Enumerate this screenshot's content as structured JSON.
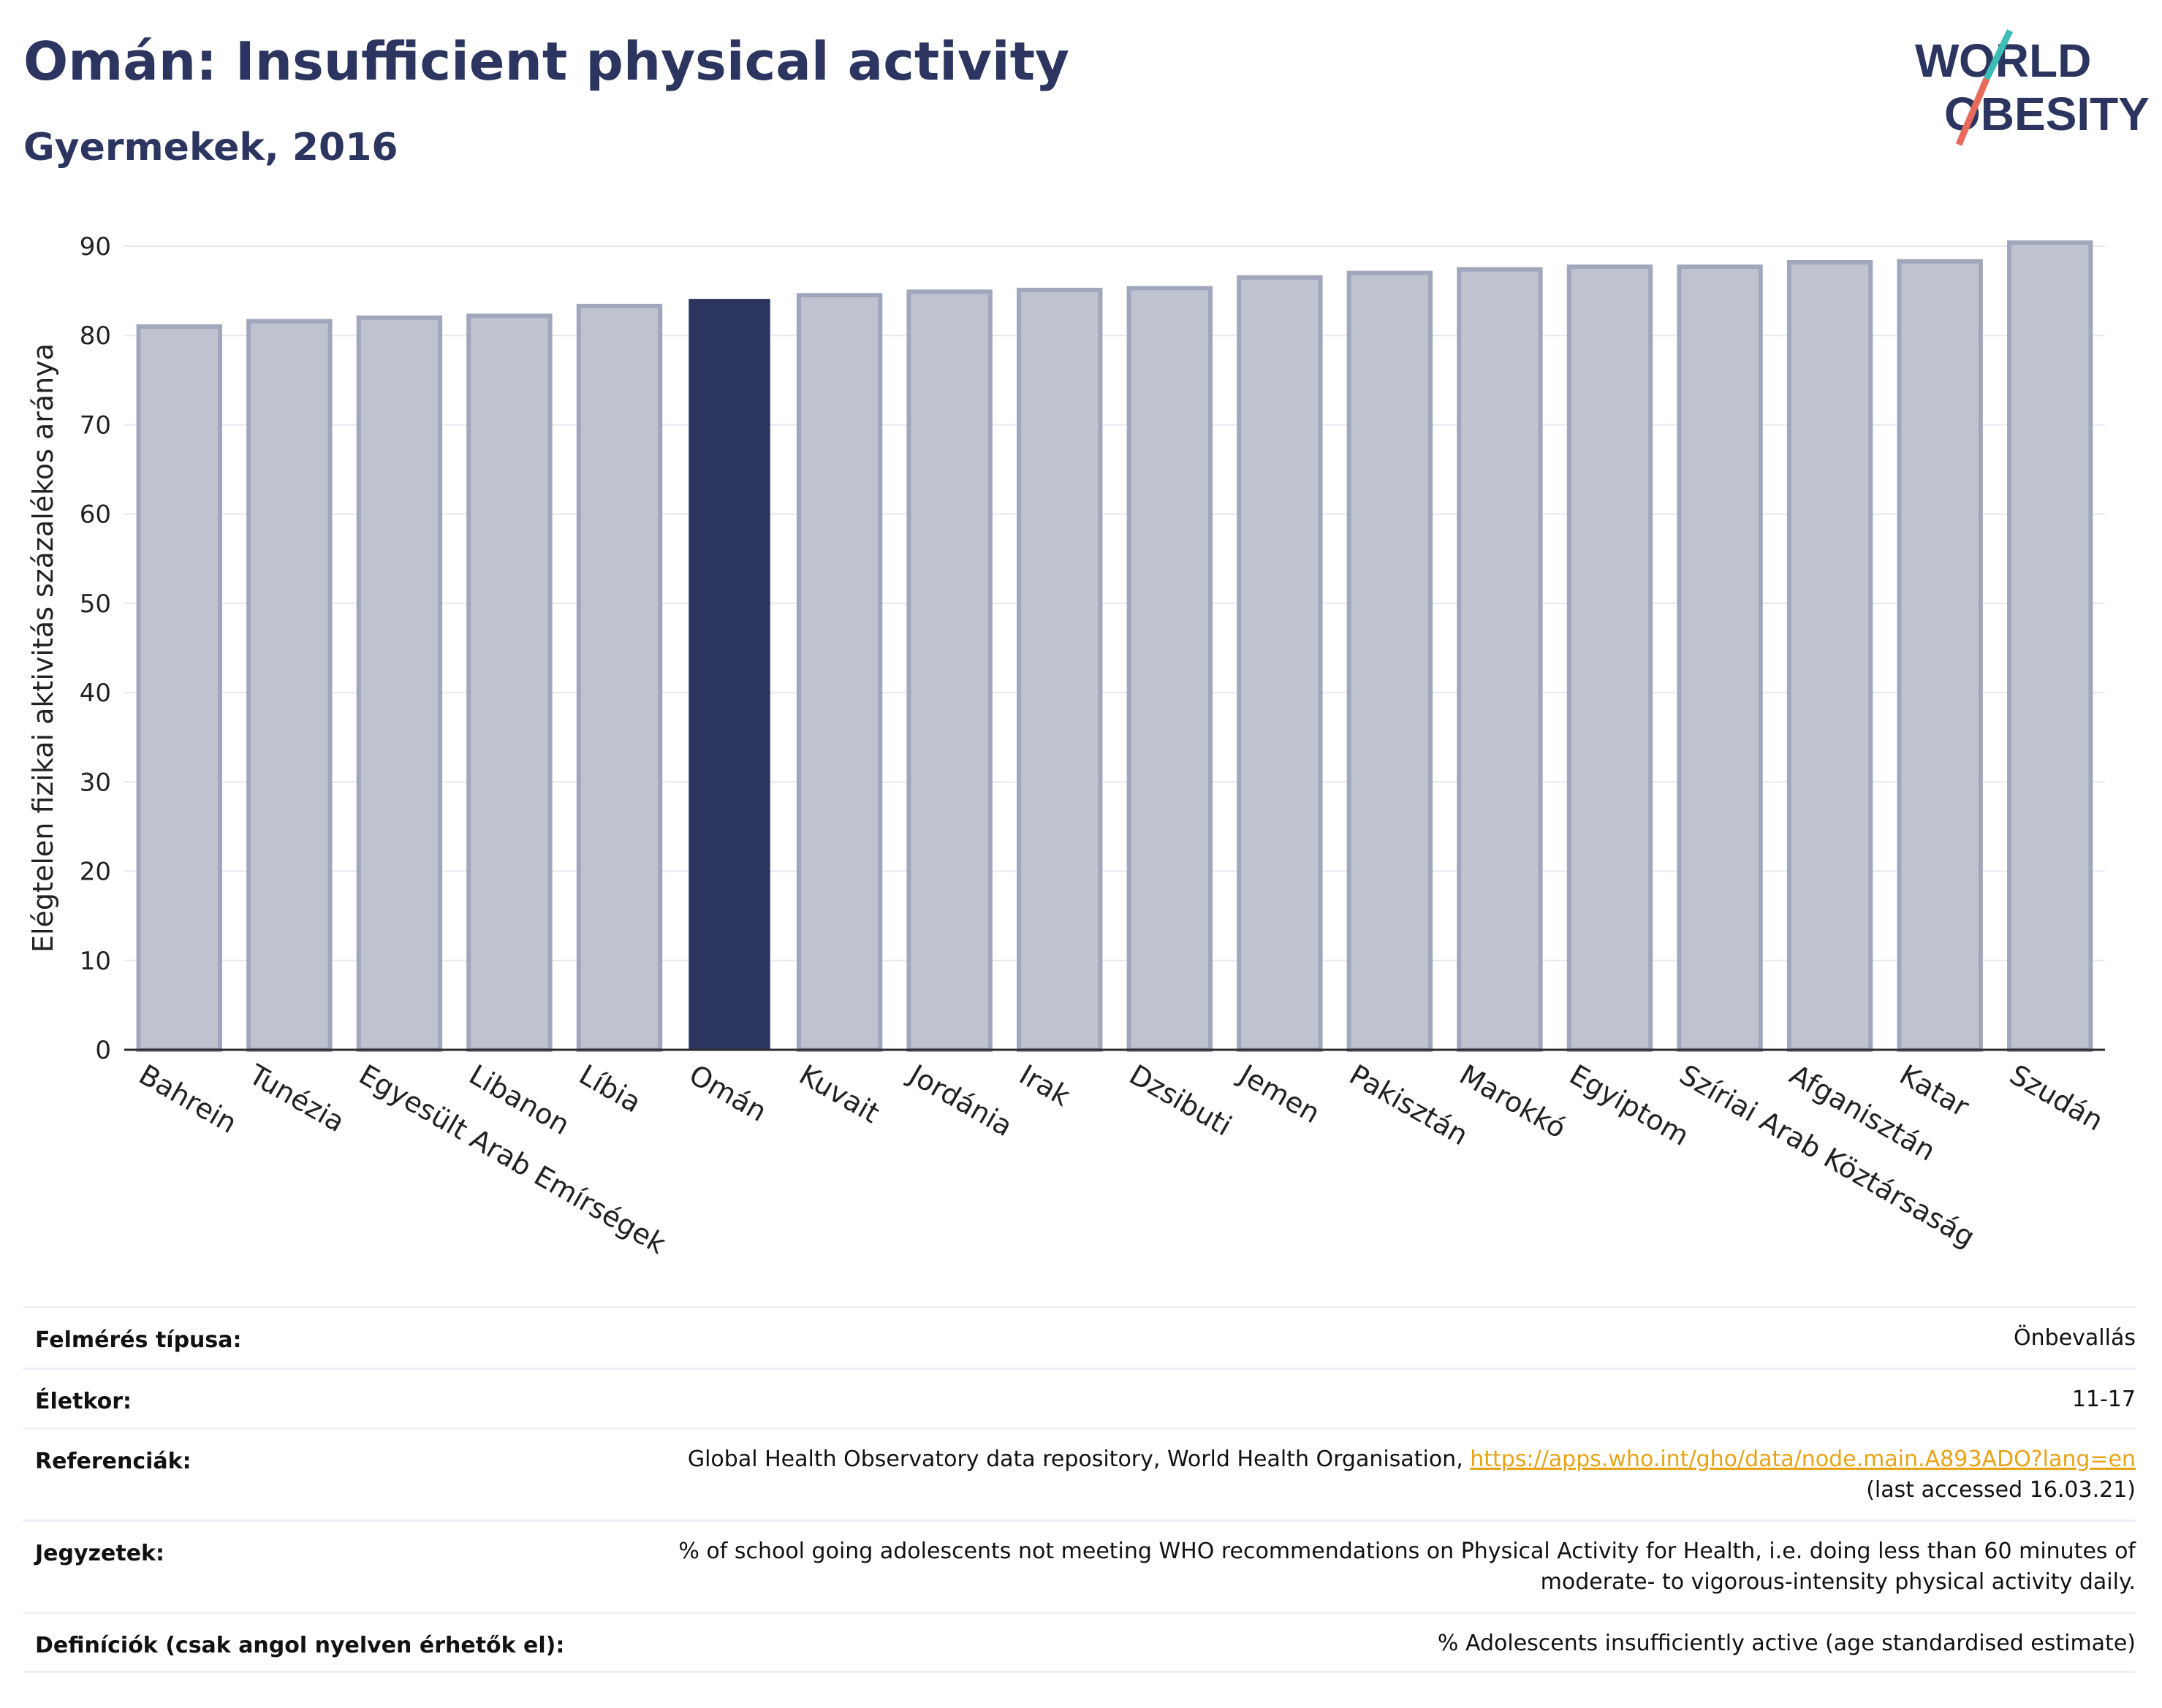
{
  "header": {
    "title": "Omán: Insufficient physical activity",
    "subtitle": "Gyermekek, 2016"
  },
  "logo": {
    "line1": "WORLD",
    "line2": "OBESITY"
  },
  "colors": {
    "highlight": "#2b355f",
    "bar": "#bfc3d0",
    "bar_stroke": "#a0a6bc",
    "grid": "#e6e8ef",
    "axis": "#2b2b2b",
    "link": "#e8a317",
    "logo_teal": "#3dbdb6",
    "logo_red": "#e76a5a"
  },
  "chart_data": {
    "type": "bar",
    "title": "",
    "ylabel": "Elégtelen fizikai aktivitás százalékos aránya",
    "xlabel": "",
    "ylim": [
      0,
      90
    ],
    "yticks": [
      0,
      10,
      20,
      30,
      40,
      50,
      60,
      70,
      80,
      90
    ],
    "grid": true,
    "highlight": "Omán",
    "categories": [
      "Bahrein",
      "Tunézia",
      "Egyesült Arab Emírségek",
      "Libanon",
      "Líbia",
      "Omán",
      "Kuvait",
      "Jordánia",
      "Irak",
      "Dzsibuti",
      "Jemen",
      "Pakisztán",
      "Marokkó",
      "Egyiptom",
      "Szíriai Arab Köztársaság",
      "Afganisztán",
      "Katar",
      "Szudán"
    ],
    "values": [
      81.0,
      81.6,
      82.0,
      82.2,
      83.3,
      84.1,
      84.5,
      84.9,
      85.1,
      85.3,
      86.5,
      87.0,
      87.4,
      87.7,
      87.7,
      88.2,
      88.3,
      90.4
    ]
  },
  "meta": {
    "rows": [
      {
        "label": "Felmérés típusa:",
        "value": "Önbevallás"
      },
      {
        "label": "Életkor:",
        "value": "11-17"
      },
      {
        "label": "Referenciák:",
        "value_prefix": "Global Health Observatory data repository, World Health Organisation, ",
        "link": "https://apps.who.int/gho/data/node.main.A893ADO?lang=en",
        "value_suffix": "(last accessed 16.03.21)"
      },
      {
        "label": "Jegyzetek:",
        "value_line1": "% of school going adolescents not meeting WHO recommendations on Physical Activity for Health, i.e. doing less than 60 minutes of",
        "value_line2": "moderate- to vigorous-intensity physical activity daily."
      },
      {
        "label": "Definíciók (csak angol nyelven érhetők el):",
        "value": "% Adolescents insufficiently active (age standardised estimate)"
      }
    ]
  }
}
